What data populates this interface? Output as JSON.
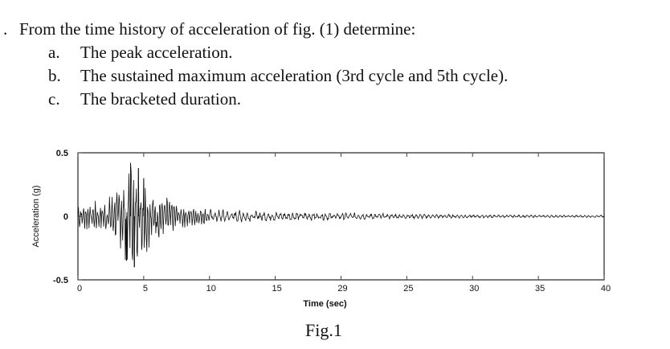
{
  "question": {
    "prefix": ".",
    "stem": "From  the time history of acceleration of fig. (1)  determine:",
    "items": [
      {
        "letter": "a.",
        "text": "The peak acceleration."
      },
      {
        "letter": "b.",
        "text": "The sustained maximum acceleration (3rd cycle and 5th cycle)."
      },
      {
        "letter": "c.",
        "text": "The bracketed duration."
      }
    ]
  },
  "figure": {
    "caption": "Fig.1"
  },
  "chart_data": {
    "type": "line",
    "title": "",
    "xlabel": "Time (sec)",
    "ylabel": "Acceleration (g)",
    "xlim": [
      0,
      40
    ],
    "ylim": [
      -0.5,
      0.5
    ],
    "x_tick_labels": [
      "0",
      "5",
      "10",
      "15",
      "29",
      "25",
      "30",
      "35",
      "40"
    ],
    "y_tick_labels": [
      "0.5",
      "0",
      "-0.5"
    ],
    "grid": false,
    "envelope": [
      {
        "t": 0,
        "a": 0.12
      },
      {
        "t": 1,
        "a": 0.12
      },
      {
        "t": 2,
        "a": 0.13
      },
      {
        "t": 3,
        "a": 0.22
      },
      {
        "t": 3.5,
        "a": 0.33
      },
      {
        "t": 4,
        "a": 0.45
      },
      {
        "t": 4.5,
        "a": 0.38
      },
      {
        "t": 5,
        "a": 0.32
      },
      {
        "t": 6,
        "a": 0.22
      },
      {
        "t": 7,
        "a": 0.14
      },
      {
        "t": 8,
        "a": 0.1
      },
      {
        "t": 10,
        "a": 0.06
      },
      {
        "t": 15,
        "a": 0.04
      },
      {
        "t": 20,
        "a": 0.03
      },
      {
        "t": 25,
        "a": 0.02
      },
      {
        "t": 30,
        "a": 0.015
      },
      {
        "t": 35,
        "a": 0.01
      },
      {
        "t": 40,
        "a": 0.01
      }
    ],
    "peaks": [
      {
        "t": 4.0,
        "a": 0.42
      },
      {
        "t": 4.3,
        "a": -0.4
      },
      {
        "t": 4.6,
        "a": 0.38
      },
      {
        "t": 3.7,
        "a": -0.35
      },
      {
        "t": 5.0,
        "a": 0.3
      }
    ]
  }
}
